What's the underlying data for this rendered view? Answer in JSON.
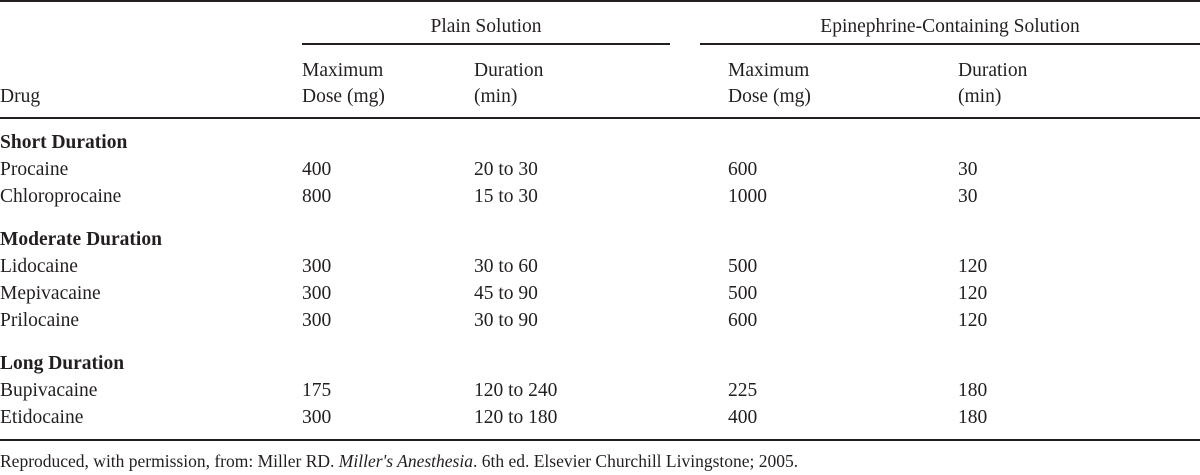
{
  "table": {
    "group_headers": [
      "Plain Solution",
      "Epinephrine-Containing Solution"
    ],
    "columns": [
      [
        "Drug"
      ],
      [
        "Maximum",
        "Dose (mg)"
      ],
      [
        "Duration",
        "(min)"
      ],
      [
        "Maximum",
        "Dose (mg)"
      ],
      [
        "Duration",
        "(min)"
      ]
    ],
    "sections": [
      {
        "title": "Short Duration",
        "rows": [
          [
            "Procaine",
            "400",
            "20 to 30",
            "600",
            "30"
          ],
          [
            "Chloroprocaine",
            "800",
            "15 to 30",
            "1000",
            "30"
          ]
        ]
      },
      {
        "title": "Moderate Duration",
        "rows": [
          [
            "Lidocaine",
            "300",
            "30 to 60",
            "500",
            "120"
          ],
          [
            "Mepivacaine",
            "300",
            "45 to 90",
            "500",
            "120"
          ],
          [
            "Prilocaine",
            "300",
            "30 to 90",
            "600",
            "120"
          ]
        ]
      },
      {
        "title": "Long Duration",
        "rows": [
          [
            "Bupivacaine",
            "175",
            "120 to 240",
            "225",
            "180"
          ],
          [
            "Etidocaine",
            "300",
            "120 to 180",
            "400",
            "180"
          ]
        ]
      }
    ]
  },
  "footnote": {
    "before": "Reproduced, with permission, from: Miller RD. ",
    "title": "Miller's Anesthesia",
    "after": ". 6th ed. Elsevier Churchill Livingstone; 2005."
  }
}
